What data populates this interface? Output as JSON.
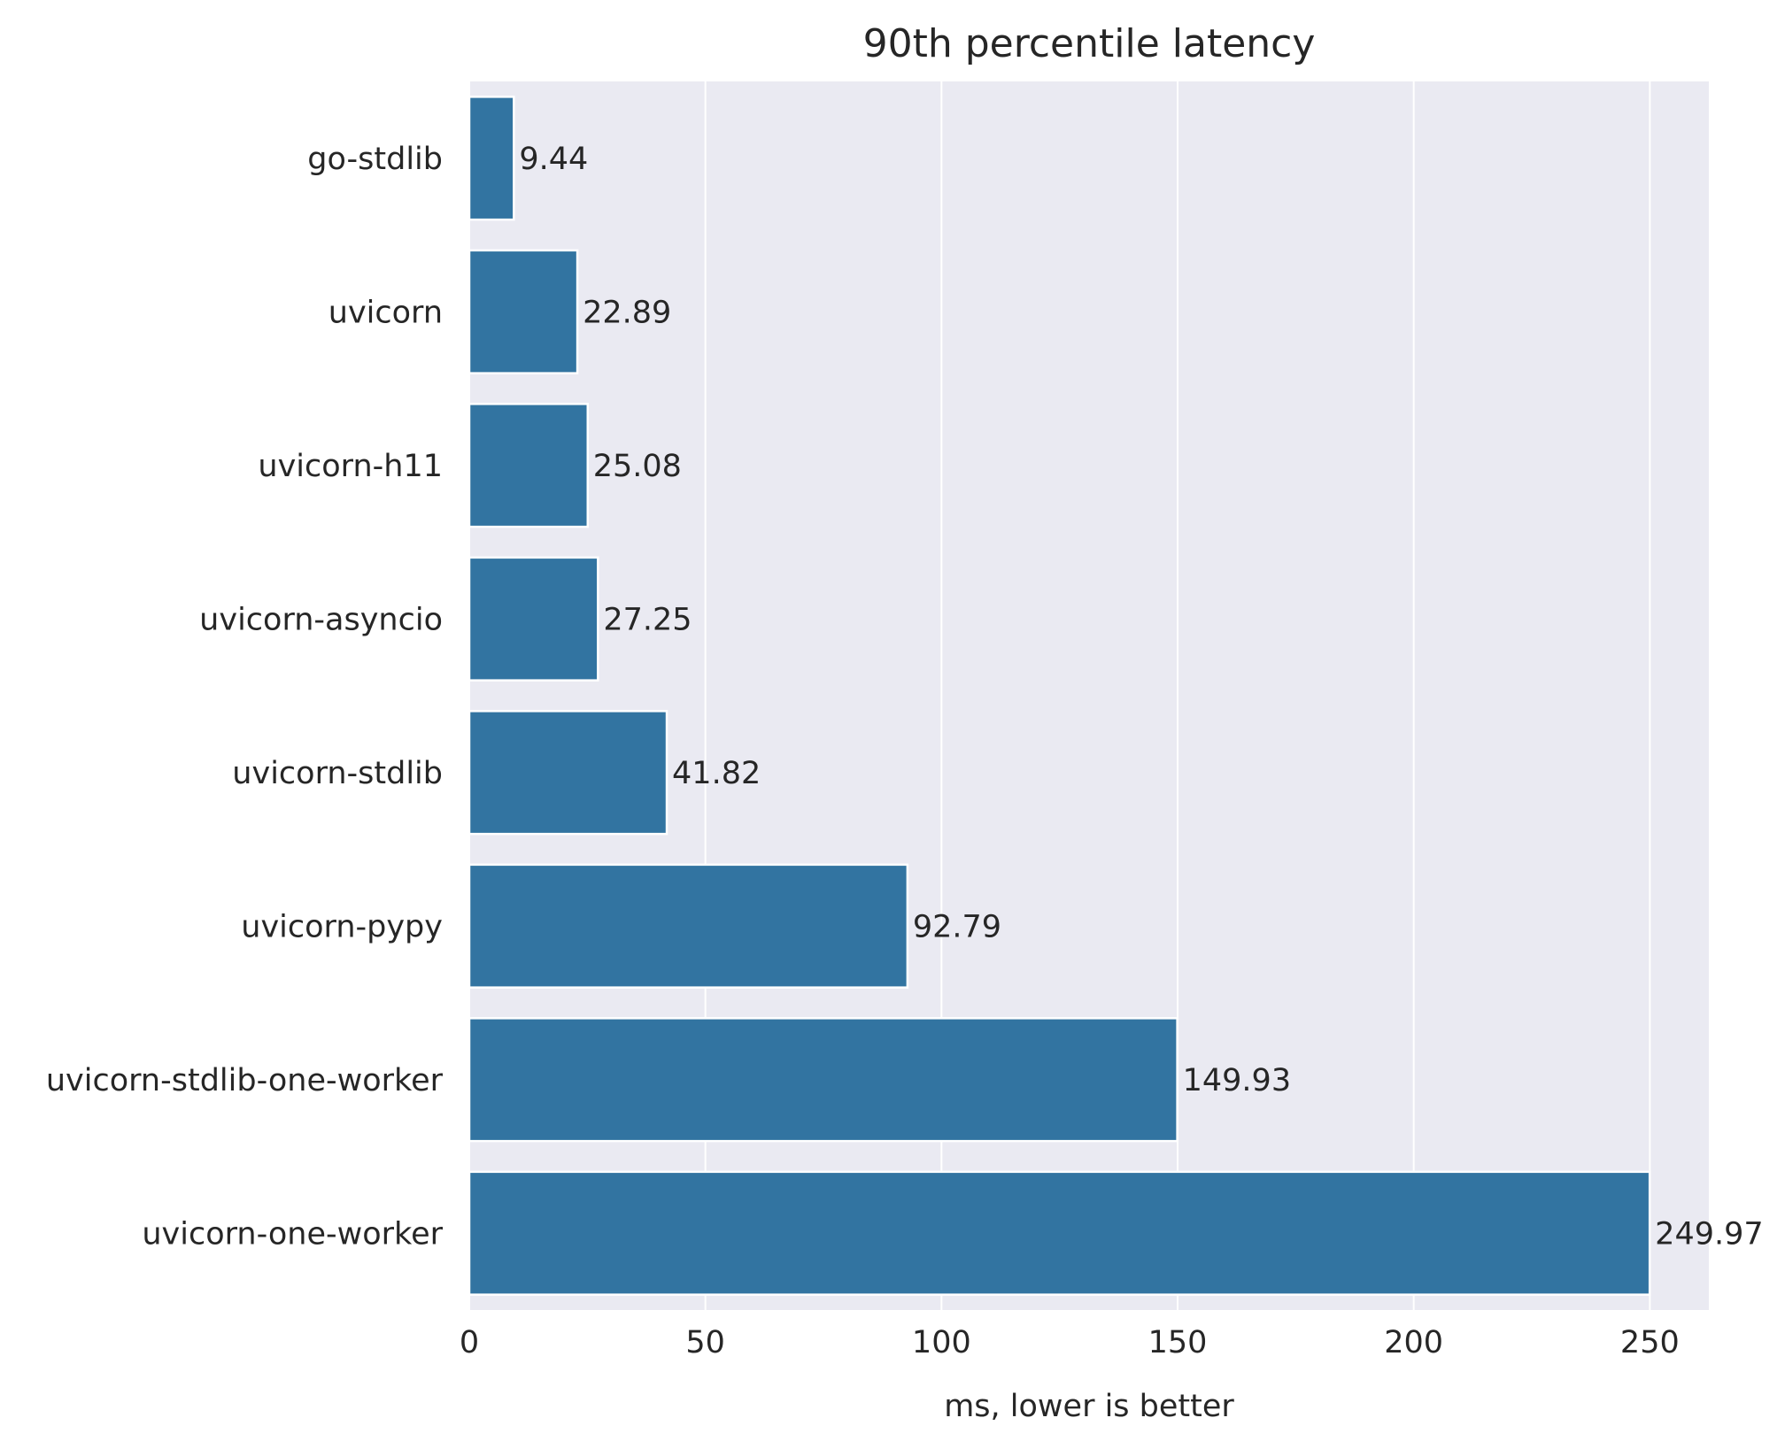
{
  "chart_data": {
    "type": "bar",
    "orientation": "horizontal",
    "title": "90th percentile latency",
    "xlabel": "ms, lower is better",
    "ylabel": "",
    "categories": [
      "go-stdlib",
      "uvicorn",
      "uvicorn-h11",
      "uvicorn-asyncio",
      "uvicorn-stdlib",
      "uvicorn-pypy",
      "uvicorn-stdlib-one-worker",
      "uvicorn-one-worker"
    ],
    "values": [
      9.44,
      22.89,
      25.08,
      27.25,
      41.82,
      92.79,
      149.93,
      249.97
    ],
    "value_labels": [
      "9.44",
      "22.89",
      "25.08",
      "27.25",
      "41.82",
      "92.79",
      "149.93",
      "249.97"
    ],
    "xlim": [
      0,
      262.5
    ],
    "xticks": [
      0,
      50,
      100,
      150,
      200,
      250
    ],
    "grid": true,
    "colors": {
      "bar": "#3274a1",
      "plot_background": "#eaeaf2",
      "grid": "#ffffff",
      "text": "#262626"
    }
  }
}
